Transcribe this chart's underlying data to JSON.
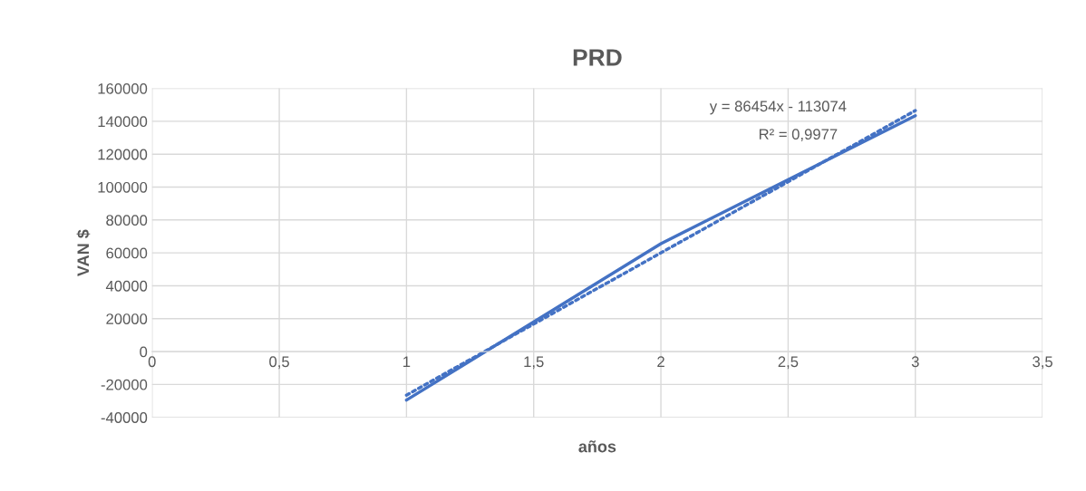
{
  "chart_data": {
    "type": "line",
    "title": "PRD",
    "xlabel": "años",
    "ylabel": "VAN $",
    "series": [
      {
        "color": "#4472c4",
        "x": [
          1,
          2,
          3
        ],
        "values": [
          -29500,
          65600,
          143400
        ],
        "line_style": "solid"
      },
      {
        "color": "#4472c4",
        "x": [
          1,
          3
        ],
        "values": [
          -26500,
          146500
        ],
        "line_style": "dotted"
      }
    ],
    "annotations": [
      "y = 86454x - 113074",
      "R² = 0,9977"
    ],
    "xlim": [
      0,
      3.5
    ],
    "xticks": [
      0,
      {
        "value": 0.5,
        "label": "0,5"
      },
      1,
      {
        "value": 1.5,
        "label": "1,5"
      },
      2,
      {
        "value": 2.5,
        "label": "2,5"
      },
      3,
      {
        "value": 3.5,
        "label": "3,5"
      }
    ],
    "ylim": [
      -40000,
      160000
    ],
    "yticks": [
      -40000,
      -20000,
      0,
      20000,
      40000,
      60000,
      80000,
      100000,
      120000,
      140000,
      160000
    ],
    "grid": true,
    "legend": false,
    "marker": "none"
  }
}
